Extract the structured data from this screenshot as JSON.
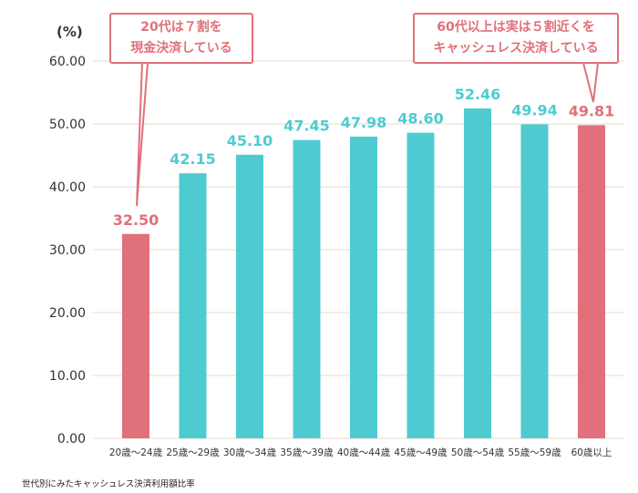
{
  "chart_data": {
    "type": "bar",
    "unit_label": "(%)",
    "caption": "世代別にみたキャッシュレス決済利用額比率",
    "categories": [
      "20歳〜24歳",
      "25歳〜29歳",
      "30歳〜34歳",
      "35歳〜39歳",
      "40歳〜44歳",
      "45歳〜49歳",
      "50歳〜54歳",
      "55歳〜59歳",
      "60歳以上"
    ],
    "values": [
      32.5,
      42.15,
      45.1,
      47.45,
      47.98,
      48.6,
      52.46,
      49.94,
      49.81
    ],
    "value_labels": [
      "32.50",
      "42.15",
      "45.10",
      "47.45",
      "47.98",
      "48.60",
      "52.46",
      "49.94",
      "49.81"
    ],
    "highlighted": [
      true,
      false,
      false,
      false,
      false,
      false,
      false,
      false,
      true
    ],
    "ylim": [
      0,
      60
    ],
    "yticks": [
      0,
      10,
      20,
      30,
      40,
      50,
      60
    ],
    "ytick_labels": [
      "0.00",
      "10.00",
      "20.00",
      "30.00",
      "40.00",
      "50.00",
      "60.00"
    ],
    "grid": true,
    "colors": {
      "normal": "#4ecbd1",
      "highlight": "#e0707a",
      "grid": "#e8d9c8"
    },
    "annotations": [
      {
        "lines": [
          "20代は７割を",
          "現金決済している"
        ],
        "target_category": "20歳〜24歳"
      },
      {
        "lines": [
          "60代以上は実は５割近くを",
          "キャッシュレス決済している"
        ],
        "target_category": "60歳以上"
      }
    ]
  }
}
